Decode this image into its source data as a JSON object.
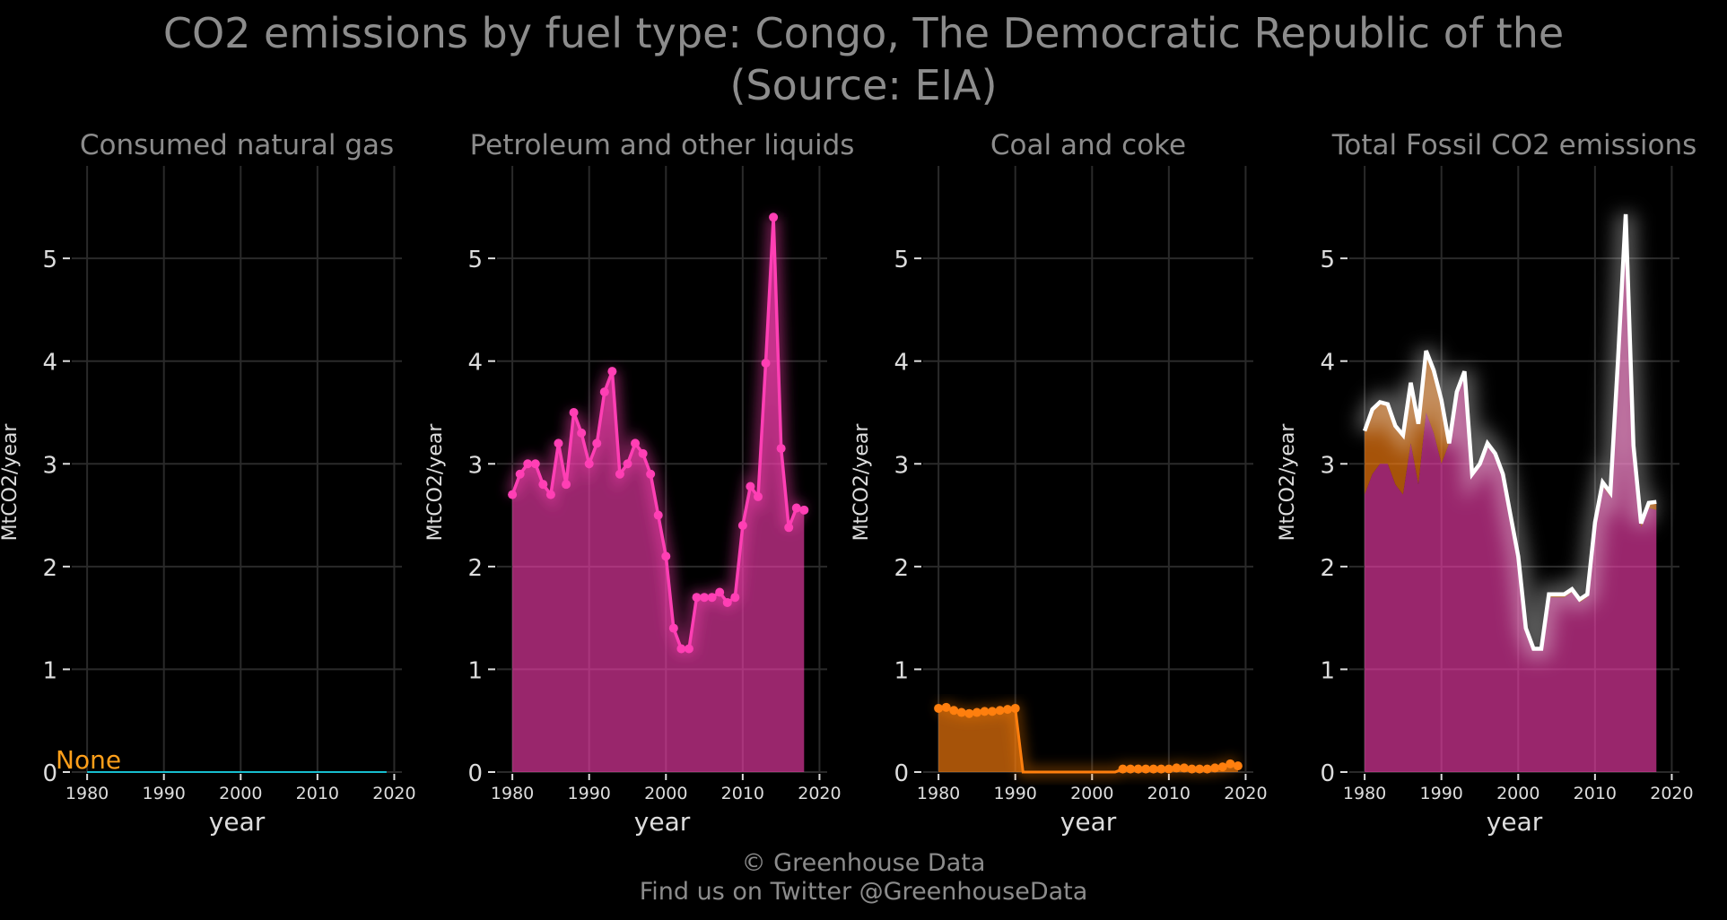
{
  "title_line1": "CO2 emissions by fuel type: Congo, The Democratic Republic of the",
  "title_line2": "(Source: EIA)",
  "footer_line1": "© Greenhouse Data",
  "footer_line2": "Find us on Twitter @GreenhouseData",
  "colors": {
    "background": "#000000",
    "grid": "#2a2a2a",
    "title": "#8c8c8c",
    "tick": "#dddddd",
    "gas": "#17becf",
    "petroleum": "#ff3fb4",
    "coal": "#ff7f0e",
    "total_line": "#ffffff",
    "none_label": "#ff9f1a"
  },
  "chart_data": [
    {
      "type": "line",
      "title": "Consumed natural gas",
      "xlabel": "year",
      "ylabel": "MtCO2/year",
      "xlim": [
        1978,
        2021
      ],
      "ylim": [
        0,
        5.9
      ],
      "xticks": [
        1980,
        1990,
        2000,
        2010,
        2020
      ],
      "yticks": [
        0,
        1,
        2,
        3,
        4,
        5
      ],
      "grid": true,
      "annotation": "None",
      "series": [
        {
          "x": [
            1980,
            2019
          ],
          "values": [
            0,
            0
          ]
        }
      ]
    },
    {
      "type": "area",
      "title": "Petroleum and other liquids",
      "xlabel": "year",
      "ylabel": "MtCO2/year",
      "xlim": [
        1978,
        2021
      ],
      "ylim": [
        0,
        5.9
      ],
      "xticks": [
        1980,
        1990,
        2000,
        2010,
        2020
      ],
      "yticks": [
        0,
        1,
        2,
        3,
        4,
        5
      ],
      "grid": true,
      "series": [
        {
          "x": [
            1980,
            1981,
            1982,
            1983,
            1984,
            1985,
            1986,
            1987,
            1988,
            1989,
            1990,
            1991,
            1992,
            1993,
            1994,
            1995,
            1996,
            1997,
            1998,
            1999,
            2000,
            2001,
            2002,
            2003,
            2004,
            2005,
            2006,
            2007,
            2008,
            2009,
            2010,
            2011,
            2012,
            2013,
            2014,
            2015,
            2016,
            2017,
            2018
          ],
          "values": [
            2.7,
            2.9,
            3.0,
            3.0,
            2.8,
            2.7,
            3.2,
            2.8,
            3.5,
            3.3,
            3.0,
            3.2,
            3.7,
            3.9,
            2.9,
            3.0,
            3.2,
            3.1,
            2.9,
            2.5,
            2.1,
            1.4,
            1.2,
            1.2,
            1.7,
            1.7,
            1.7,
            1.75,
            1.65,
            1.7,
            2.4,
            2.78,
            2.68,
            3.98,
            5.4,
            3.15,
            2.38,
            2.57,
            2.55
          ]
        }
      ]
    },
    {
      "type": "area",
      "title": "Coal and coke",
      "xlabel": "year",
      "ylabel": "MtCO2/year",
      "xlim": [
        1978,
        2021
      ],
      "ylim": [
        0,
        5.9
      ],
      "xticks": [
        1980,
        1990,
        2000,
        2010,
        2020
      ],
      "yticks": [
        0,
        1,
        2,
        3,
        4,
        5
      ],
      "grid": true,
      "series": [
        {
          "x": [
            1980,
            1981,
            1982,
            1983,
            1984,
            1985,
            1986,
            1987,
            1988,
            1989,
            1990,
            1991,
            1992,
            1993,
            1994,
            1995,
            1996,
            1997,
            1998,
            1999,
            2000,
            2001,
            2002,
            2003,
            2004,
            2005,
            2006,
            2007,
            2008,
            2009,
            2010,
            2011,
            2012,
            2013,
            2014,
            2015,
            2016,
            2017,
            2018,
            2019
          ],
          "values": [
            0.62,
            0.63,
            0.6,
            0.58,
            0.57,
            0.58,
            0.59,
            0.59,
            0.6,
            0.61,
            0.62,
            0,
            0,
            0,
            0,
            0,
            0,
            0,
            0,
            0,
            0,
            0,
            0,
            0,
            0.03,
            0.03,
            0.03,
            0.03,
            0.03,
            0.03,
            0.03,
            0.04,
            0.04,
            0.03,
            0.03,
            0.03,
            0.04,
            0.05,
            0.08,
            0.06
          ],
          "markers_x": [
            1980,
            1981,
            1982,
            1983,
            1984,
            1985,
            1986,
            1987,
            1988,
            1989,
            1990,
            2004,
            2005,
            2006,
            2007,
            2008,
            2009,
            2010,
            2011,
            2012,
            2013,
            2014,
            2015,
            2016,
            2017,
            2018,
            2019
          ]
        }
      ]
    },
    {
      "type": "area",
      "title": "Total Fossil CO2 emissions",
      "xlabel": "year",
      "ylabel": "MtCO2/year",
      "xlim": [
        1978,
        2021
      ],
      "ylim": [
        0,
        5.9
      ],
      "xticks": [
        1980,
        1990,
        2000,
        2010,
        2020
      ],
      "yticks": [
        0,
        1,
        2,
        3,
        4,
        5
      ],
      "grid": true,
      "series": [
        {
          "name_key": "petroleum",
          "x": [
            1980,
            1981,
            1982,
            1983,
            1984,
            1985,
            1986,
            1987,
            1988,
            1989,
            1990,
            1991,
            1992,
            1993,
            1994,
            1995,
            1996,
            1997,
            1998,
            1999,
            2000,
            2001,
            2002,
            2003,
            2004,
            2005,
            2006,
            2007,
            2008,
            2009,
            2010,
            2011,
            2012,
            2013,
            2014,
            2015,
            2016,
            2017,
            2018
          ],
          "values": [
            2.7,
            2.9,
            3.0,
            3.0,
            2.8,
            2.7,
            3.2,
            2.8,
            3.5,
            3.3,
            3.0,
            3.2,
            3.7,
            3.9,
            2.9,
            3.0,
            3.2,
            3.1,
            2.9,
            2.5,
            2.1,
            1.4,
            1.2,
            1.2,
            1.7,
            1.7,
            1.7,
            1.75,
            1.65,
            1.7,
            2.4,
            2.78,
            2.68,
            3.98,
            5.4,
            3.15,
            2.38,
            2.57,
            2.55
          ]
        },
        {
          "name_key": "total",
          "x": [
            1980,
            1981,
            1982,
            1983,
            1984,
            1985,
            1986,
            1987,
            1988,
            1989,
            1990,
            1991,
            1992,
            1993,
            1994,
            1995,
            1996,
            1997,
            1998,
            1999,
            2000,
            2001,
            2002,
            2003,
            2004,
            2005,
            2006,
            2007,
            2008,
            2009,
            2010,
            2011,
            2012,
            2013,
            2014,
            2015,
            2016,
            2017,
            2018
          ],
          "values": [
            3.32,
            3.53,
            3.6,
            3.58,
            3.37,
            3.28,
            3.79,
            3.39,
            4.1,
            3.91,
            3.62,
            3.2,
            3.7,
            3.9,
            2.9,
            3.0,
            3.2,
            3.1,
            2.9,
            2.5,
            2.1,
            1.4,
            1.2,
            1.2,
            1.73,
            1.73,
            1.73,
            1.78,
            1.68,
            1.73,
            2.43,
            2.82,
            2.72,
            4.01,
            5.43,
            3.18,
            2.42,
            2.62,
            2.63
          ]
        }
      ]
    }
  ]
}
